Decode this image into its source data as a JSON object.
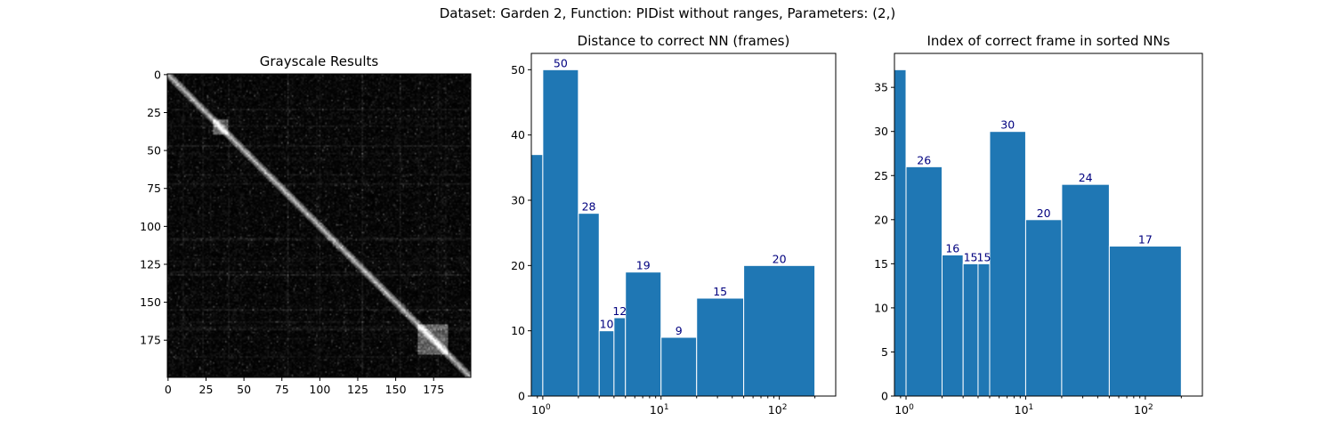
{
  "suptitle": "Dataset:  Garden 2,  Function:  PIDist without ranges, Parameters: (2,)",
  "chart_data": [
    {
      "type": "heatmap",
      "title": "Grayscale Results",
      "colormap": "gray",
      "size": 200,
      "xlim": [
        0,
        200
      ],
      "ylim": [
        200,
        0
      ],
      "xticks": [
        0,
        25,
        50,
        75,
        100,
        125,
        150,
        175
      ],
      "yticks": [
        0,
        25,
        50,
        75,
        100,
        125,
        150,
        175
      ],
      "xtick_labels": [
        "0",
        "25",
        "50",
        "75",
        "100",
        "125",
        "150",
        "175"
      ],
      "ytick_labels": [
        "0",
        "25",
        "50",
        "75",
        "100",
        "125",
        "150",
        "175"
      ],
      "bright_blocks": [
        [
          30,
          40
        ],
        [
          165,
          185
        ]
      ]
    },
    {
      "type": "bar",
      "title": "Distance to correct NN (frames)",
      "xscale": "log",
      "bin_edges": [
        0,
        1,
        2,
        3,
        4,
        5,
        10,
        20,
        50,
        200
      ],
      "values": [
        37,
        50,
        28,
        10,
        12,
        19,
        9,
        15,
        20
      ],
      "bar_labels": [
        "",
        "50",
        "28",
        "10",
        "12",
        "19",
        "9",
        "15",
        "20"
      ],
      "xlim": [
        0.8,
        300
      ],
      "ylim": [
        0,
        52.5
      ],
      "yticks": [
        0,
        10,
        20,
        30,
        40,
        50
      ],
      "ytick_labels": [
        "0",
        "10",
        "20",
        "30",
        "40",
        "50"
      ],
      "xticks": [
        1,
        10,
        100
      ],
      "xtick_labels": [
        [
          "10",
          "0"
        ],
        [
          "10",
          "1"
        ],
        [
          "10",
          "2"
        ]
      ],
      "color": "#1f77b4"
    },
    {
      "type": "bar",
      "title": "Index of correct frame in sorted NNs",
      "xscale": "log",
      "bin_edges": [
        0,
        1,
        2,
        3,
        4,
        5,
        10,
        20,
        50,
        200
      ],
      "values": [
        37,
        26,
        16,
        15,
        15,
        30,
        20,
        24,
        17
      ],
      "bar_labels": [
        "",
        "26",
        "16",
        "15",
        "15",
        "30",
        "20",
        "24",
        "17"
      ],
      "xlim": [
        0.8,
        300
      ],
      "ylim": [
        0,
        38.85
      ],
      "yticks": [
        0,
        5,
        10,
        15,
        20,
        25,
        30,
        35
      ],
      "ytick_labels": [
        "0",
        "5",
        "10",
        "15",
        "20",
        "25",
        "30",
        "35"
      ],
      "xticks": [
        1,
        10,
        100
      ],
      "xtick_labels": [
        [
          "10",
          "0"
        ],
        [
          "10",
          "1"
        ],
        [
          "10",
          "2"
        ]
      ],
      "color": "#1f77b4"
    }
  ]
}
